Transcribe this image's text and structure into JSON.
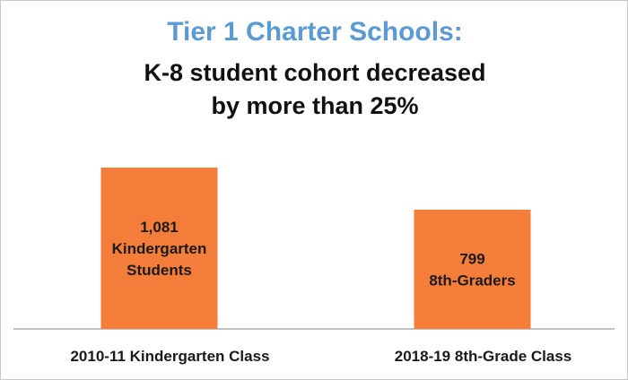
{
  "chart_data": {
    "type": "bar",
    "title": "Tier 1 Charter Schools:",
    "subtitle_lines": [
      "K-8 student cohort decreased",
      "by more than 25%"
    ],
    "categories": [
      "2010-11 Kindergarten Class",
      "2018-19 8th-Grade Class"
    ],
    "values": [
      1081,
      799
    ],
    "data_labels": [
      [
        "1,081",
        "Kindergarten",
        "Students"
      ],
      [
        "799",
        "8th-Graders"
      ]
    ],
    "xlabel": "",
    "ylabel": "",
    "grid": false,
    "legend": "none",
    "bar_color": "#f47d3a",
    "title_color": "#5b9bd5"
  }
}
